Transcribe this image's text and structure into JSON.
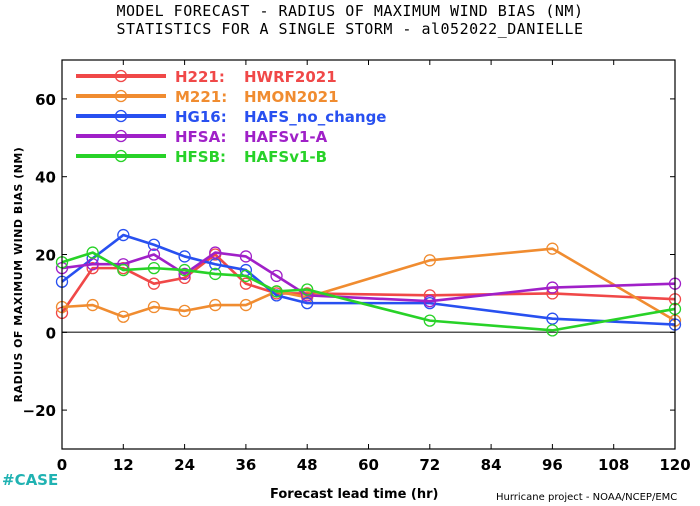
{
  "title_line1": "MODEL FORECAST - RADIUS OF MAXIMUM WIND BIAS (NM)",
  "title_line2": "STATISTICS FOR A SINGLE STORM - al052022_DANIELLE",
  "tag": "#CASE",
  "credit": "Hurricane project - NOAA/NCEP/EMC",
  "chart_data": {
    "type": "line",
    "xlabel": "Forecast lead time (hr)",
    "ylabel": "RADIUS OF MAXIMUM WIND BIAS (NM)",
    "xlim": [
      0,
      120
    ],
    "ylim": [
      -30,
      70
    ],
    "x_ticks": [
      0,
      12,
      24,
      36,
      48,
      60,
      72,
      84,
      96,
      108,
      120
    ],
    "y_ticks": [
      -20,
      0,
      20,
      40,
      60
    ],
    "zero_line": true,
    "legend_position": "top-left",
    "series": [
      {
        "code": "H221:",
        "name": "HWRF2021",
        "color": "#f04848",
        "x": [
          0,
          6,
          12,
          18,
          24,
          30,
          36,
          42,
          48,
          72,
          96,
          120
        ],
        "y": [
          5,
          16.5,
          16.5,
          12.5,
          14,
          20,
          12.5,
          10,
          10,
          9.5,
          10,
          8.5
        ]
      },
      {
        "code": "M221:",
        "name": "HMON2021",
        "color": "#f08c30",
        "x": [
          0,
          6,
          12,
          18,
          24,
          30,
          36,
          42,
          48,
          72,
          96,
          120
        ],
        "y": [
          6.5,
          7,
          4,
          6.5,
          5.5,
          7,
          7,
          10.5,
          9,
          18.5,
          21.5,
          3
        ]
      },
      {
        "code": "HG16:",
        "name": "HAFS_no_change",
        "color": "#2850f0",
        "x": [
          0,
          6,
          12,
          18,
          24,
          30,
          36,
          42,
          48,
          72,
          96,
          120
        ],
        "y": [
          13,
          19,
          25,
          22.5,
          19.5,
          17.5,
          16,
          9.5,
          7.5,
          7.5,
          3.5,
          2
        ]
      },
      {
        "code": "HFSA:",
        "name": "HAFSv1-A",
        "color": "#a020c8",
        "x": [
          0,
          6,
          12,
          18,
          24,
          30,
          36,
          42,
          48,
          72,
          96,
          120
        ],
        "y": [
          16.5,
          17.5,
          17.5,
          20,
          15,
          20.5,
          19.5,
          14.5,
          9.5,
          8,
          11.5,
          12.5
        ]
      },
      {
        "code": "HFSB:",
        "name": "HAFSv1-B",
        "color": "#28d228",
        "x": [
          0,
          6,
          12,
          18,
          24,
          30,
          36,
          42,
          48,
          72,
          96,
          120
        ],
        "y": [
          18,
          20.5,
          16,
          16.5,
          16,
          15,
          14.5,
          10.5,
          11,
          3,
          0.5,
          6
        ]
      }
    ]
  }
}
